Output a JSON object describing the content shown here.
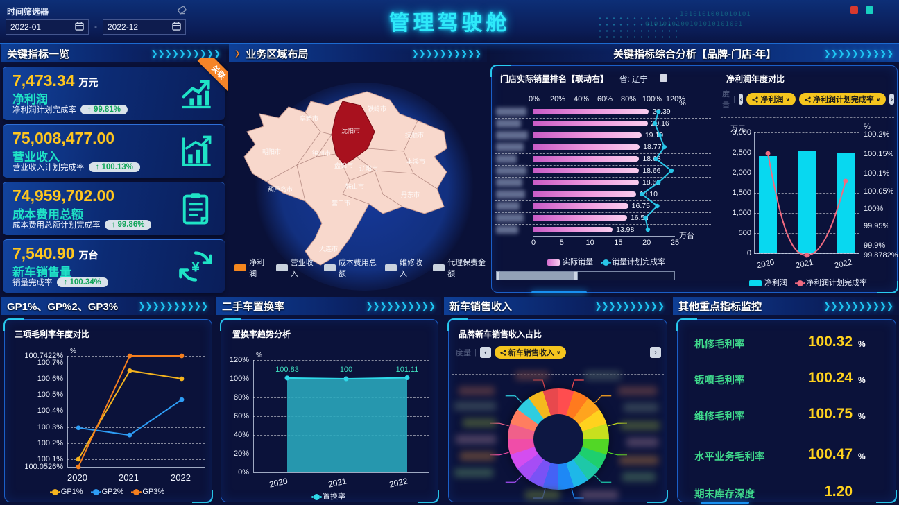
{
  "header": {
    "title": "管理驾驶舱",
    "deco_binary1": "1010101001010101",
    "deco_binary2": "0101010100101010101001",
    "time_filter": {
      "label": "时间筛选器",
      "start": "2022-01",
      "end": "2022-12",
      "separator": "-"
    }
  },
  "kpi": {
    "panel_title": "关键指标一览",
    "ribbon": "关联",
    "cards": [
      {
        "value": "7,473.34",
        "unit": "万元",
        "name": "净利润",
        "rate_label": "净利润计划完成率",
        "rate": "↑ 99.81%",
        "icon": "line-chart-up-icon"
      },
      {
        "value": "75,008,477.00",
        "unit": "",
        "name": "营业收入",
        "rate_label": "营业收入计划完成率",
        "rate": "↑ 100.13%",
        "icon": "bar-chart-up-icon"
      },
      {
        "value": "74,959,702.00",
        "unit": "",
        "name": "成本费用总额",
        "rate_label": "成本费用总额计划完成率",
        "rate": "↑ 99.86%",
        "icon": "clipboard-icon"
      },
      {
        "value": "7,540.90",
        "unit": "万台",
        "name": "新车销售量",
        "rate_label": "销量完成率",
        "rate": "↑ 100.34%",
        "icon": "yuan-refresh-icon"
      }
    ]
  },
  "map": {
    "panel_title": "业务区域布局",
    "highlight": "沈阳市",
    "cities": [
      "铁岭市",
      "阜新市",
      "沈阳市",
      "抚顺市",
      "朝阳市",
      "锦州市",
      "盘锦市",
      "辽阳市",
      "本溪市",
      "鞍山市",
      "葫芦岛市",
      "营口市",
      "丹东市",
      "大连市"
    ],
    "legend": [
      {
        "label": "净利润",
        "color": "#f5871e"
      },
      {
        "label": "营业收入",
        "color": "#c9d2de"
      },
      {
        "label": "成本费用总额",
        "color": "#c9d2de"
      },
      {
        "label": "维修收入",
        "color": "#c9d2de"
      },
      {
        "label": "代理保费金额",
        "color": "#c9d2de"
      }
    ]
  },
  "analysis": {
    "panel_title": "关键指标综合分析【品牌-门店-年】",
    "rank": {
      "title": "门店实际销量排名【联动右】",
      "province_label": "省: 辽宁",
      "chart_data": {
        "type": "bar",
        "orientation": "horizontal",
        "top_axis_ticks": [
          "0%",
          "20%",
          "40%",
          "60%",
          "80%",
          "100%",
          "120%"
        ],
        "top_axis_unit": "%",
        "bottom_axis_ticks": [
          "0",
          "5",
          "10",
          "15",
          "20",
          "25"
        ],
        "bottom_axis_unit": "万台",
        "bottom_axis_max": 25,
        "bars": [
          20.39,
          20.16,
          19.1,
          18.77,
          18.68,
          18.66,
          18.62,
          18.1,
          16.75,
          16.54,
          13.98
        ],
        "bar_labels": [
          "20.39",
          "20.16",
          "19.10",
          "18.77",
          "18.68",
          "18.66",
          "18.62",
          "18.10",
          "16.75",
          "16.54",
          "13.98"
        ],
        "line_pct": [
          106,
          103,
          107,
          111,
          104,
          117,
          106,
          92,
          105,
          95,
          97
        ],
        "legend": [
          "实际销量",
          "销量计划完成率"
        ],
        "bar_color": "#e87fd4",
        "line_color": "#29c6e8",
        "category_labels_blurred": true
      }
    },
    "profit": {
      "title": "净利润年度对比",
      "measure_label": "度量",
      "pills": [
        "净利润",
        "净利润计划完成率"
      ],
      "chart_data": {
        "type": "bar+line",
        "categories": [
          "2020",
          "2021",
          "2022"
        ],
        "bar_series": {
          "name": "净利润",
          "unit": "万元",
          "values": [
            2420,
            2530,
            2500
          ],
          "color": "#08d8f0"
        },
        "line_series": {
          "name": "净利润计划完成率",
          "unit": "%",
          "values": [
            100.152,
            99.8782,
            100.08
          ],
          "color": "#f06a80"
        },
        "left_ticks": [
          "3,000",
          "2,500",
          "2,000",
          "1,500",
          "1,000",
          "500",
          "0"
        ],
        "left_unit": "万元",
        "right_ticks": [
          "100.2%",
          "100.15%",
          "100.1%",
          "100.05%",
          "100%",
          "99.95%",
          "99.9%",
          "99.8782%"
        ],
        "right_unit": "%",
        "legend": [
          "净利润",
          "净利润计划完成率"
        ]
      }
    }
  },
  "gp": {
    "panel_title": "GP1%、GP%2、GP3%",
    "title": "三项毛利率年度对比",
    "chart_data": {
      "type": "line",
      "categories": [
        "2020",
        "2021",
        "2022"
      ],
      "y_ticks": [
        "100.7422%",
        "100.7%",
        "100.6%",
        "100.5%",
        "100.4%",
        "100.3%",
        "100.2%",
        "100.1%",
        "100.0526%"
      ],
      "y_unit": "%",
      "ymin": 100.0526,
      "ymax": 100.7422,
      "series": [
        {
          "name": "GP1%",
          "color": "#f5b41e",
          "values": [
            100.1,
            100.65,
            100.6
          ]
        },
        {
          "name": "GP2%",
          "color": "#2e9df5",
          "values": [
            100.295,
            100.25,
            100.47
          ]
        },
        {
          "name": "GP3%",
          "color": "#f57f1e",
          "values": [
            100.0526,
            100.7422,
            100.7422
          ]
        }
      ]
    }
  },
  "swap": {
    "panel_title": "二手车置换率",
    "title": "置换率趋势分析",
    "chart_data": {
      "type": "area",
      "categories": [
        "2020",
        "2021",
        "2022"
      ],
      "values": [
        100.83,
        100,
        101.11
      ],
      "point_labels": [
        "100.83",
        "100",
        "101.11"
      ],
      "y_ticks": [
        "120%",
        "100%",
        "80%",
        "60%",
        "40%",
        "20%",
        "0%"
      ],
      "y_unit": "%",
      "legend": [
        "置换率"
      ],
      "area_color": "#2aaabe",
      "line_color": "#2ed8e8"
    }
  },
  "newcar": {
    "panel_title": "新车销售收入",
    "title": "品牌新车销售收入占比",
    "measure_label": "度量",
    "pills": [
      "新车销售收入"
    ],
    "chart_data": {
      "type": "pie",
      "labels_blurred": true,
      "slice_colors": [
        "#ff4d4f",
        "#ff7a1e",
        "#ffa41e",
        "#ffd21e",
        "#c8e01e",
        "#52d726",
        "#1ecf6e",
        "#1ec8a8",
        "#1eb8e8",
        "#1e88f5",
        "#4462f5",
        "#7a52f5",
        "#a64df5",
        "#d44df0",
        "#f04da8",
        "#f0608a",
        "#ff7e5f",
        "#2ecde0",
        "#f5b91e",
        "#e8484d"
      ]
    }
  },
  "monitor": {
    "panel_title": "其他重点指标监控",
    "metrics": [
      {
        "label": "机修毛利率",
        "value": "100.32",
        "unit": "%"
      },
      {
        "label": "钣喷毛利率",
        "value": "100.24",
        "unit": "%"
      },
      {
        "label": "维修毛利率",
        "value": "100.75",
        "unit": "%"
      },
      {
        "label": "水平业务毛利率",
        "value": "100.47",
        "unit": "%"
      },
      {
        "label": "期末库存深度",
        "value": "1.20",
        "unit": ""
      }
    ]
  }
}
